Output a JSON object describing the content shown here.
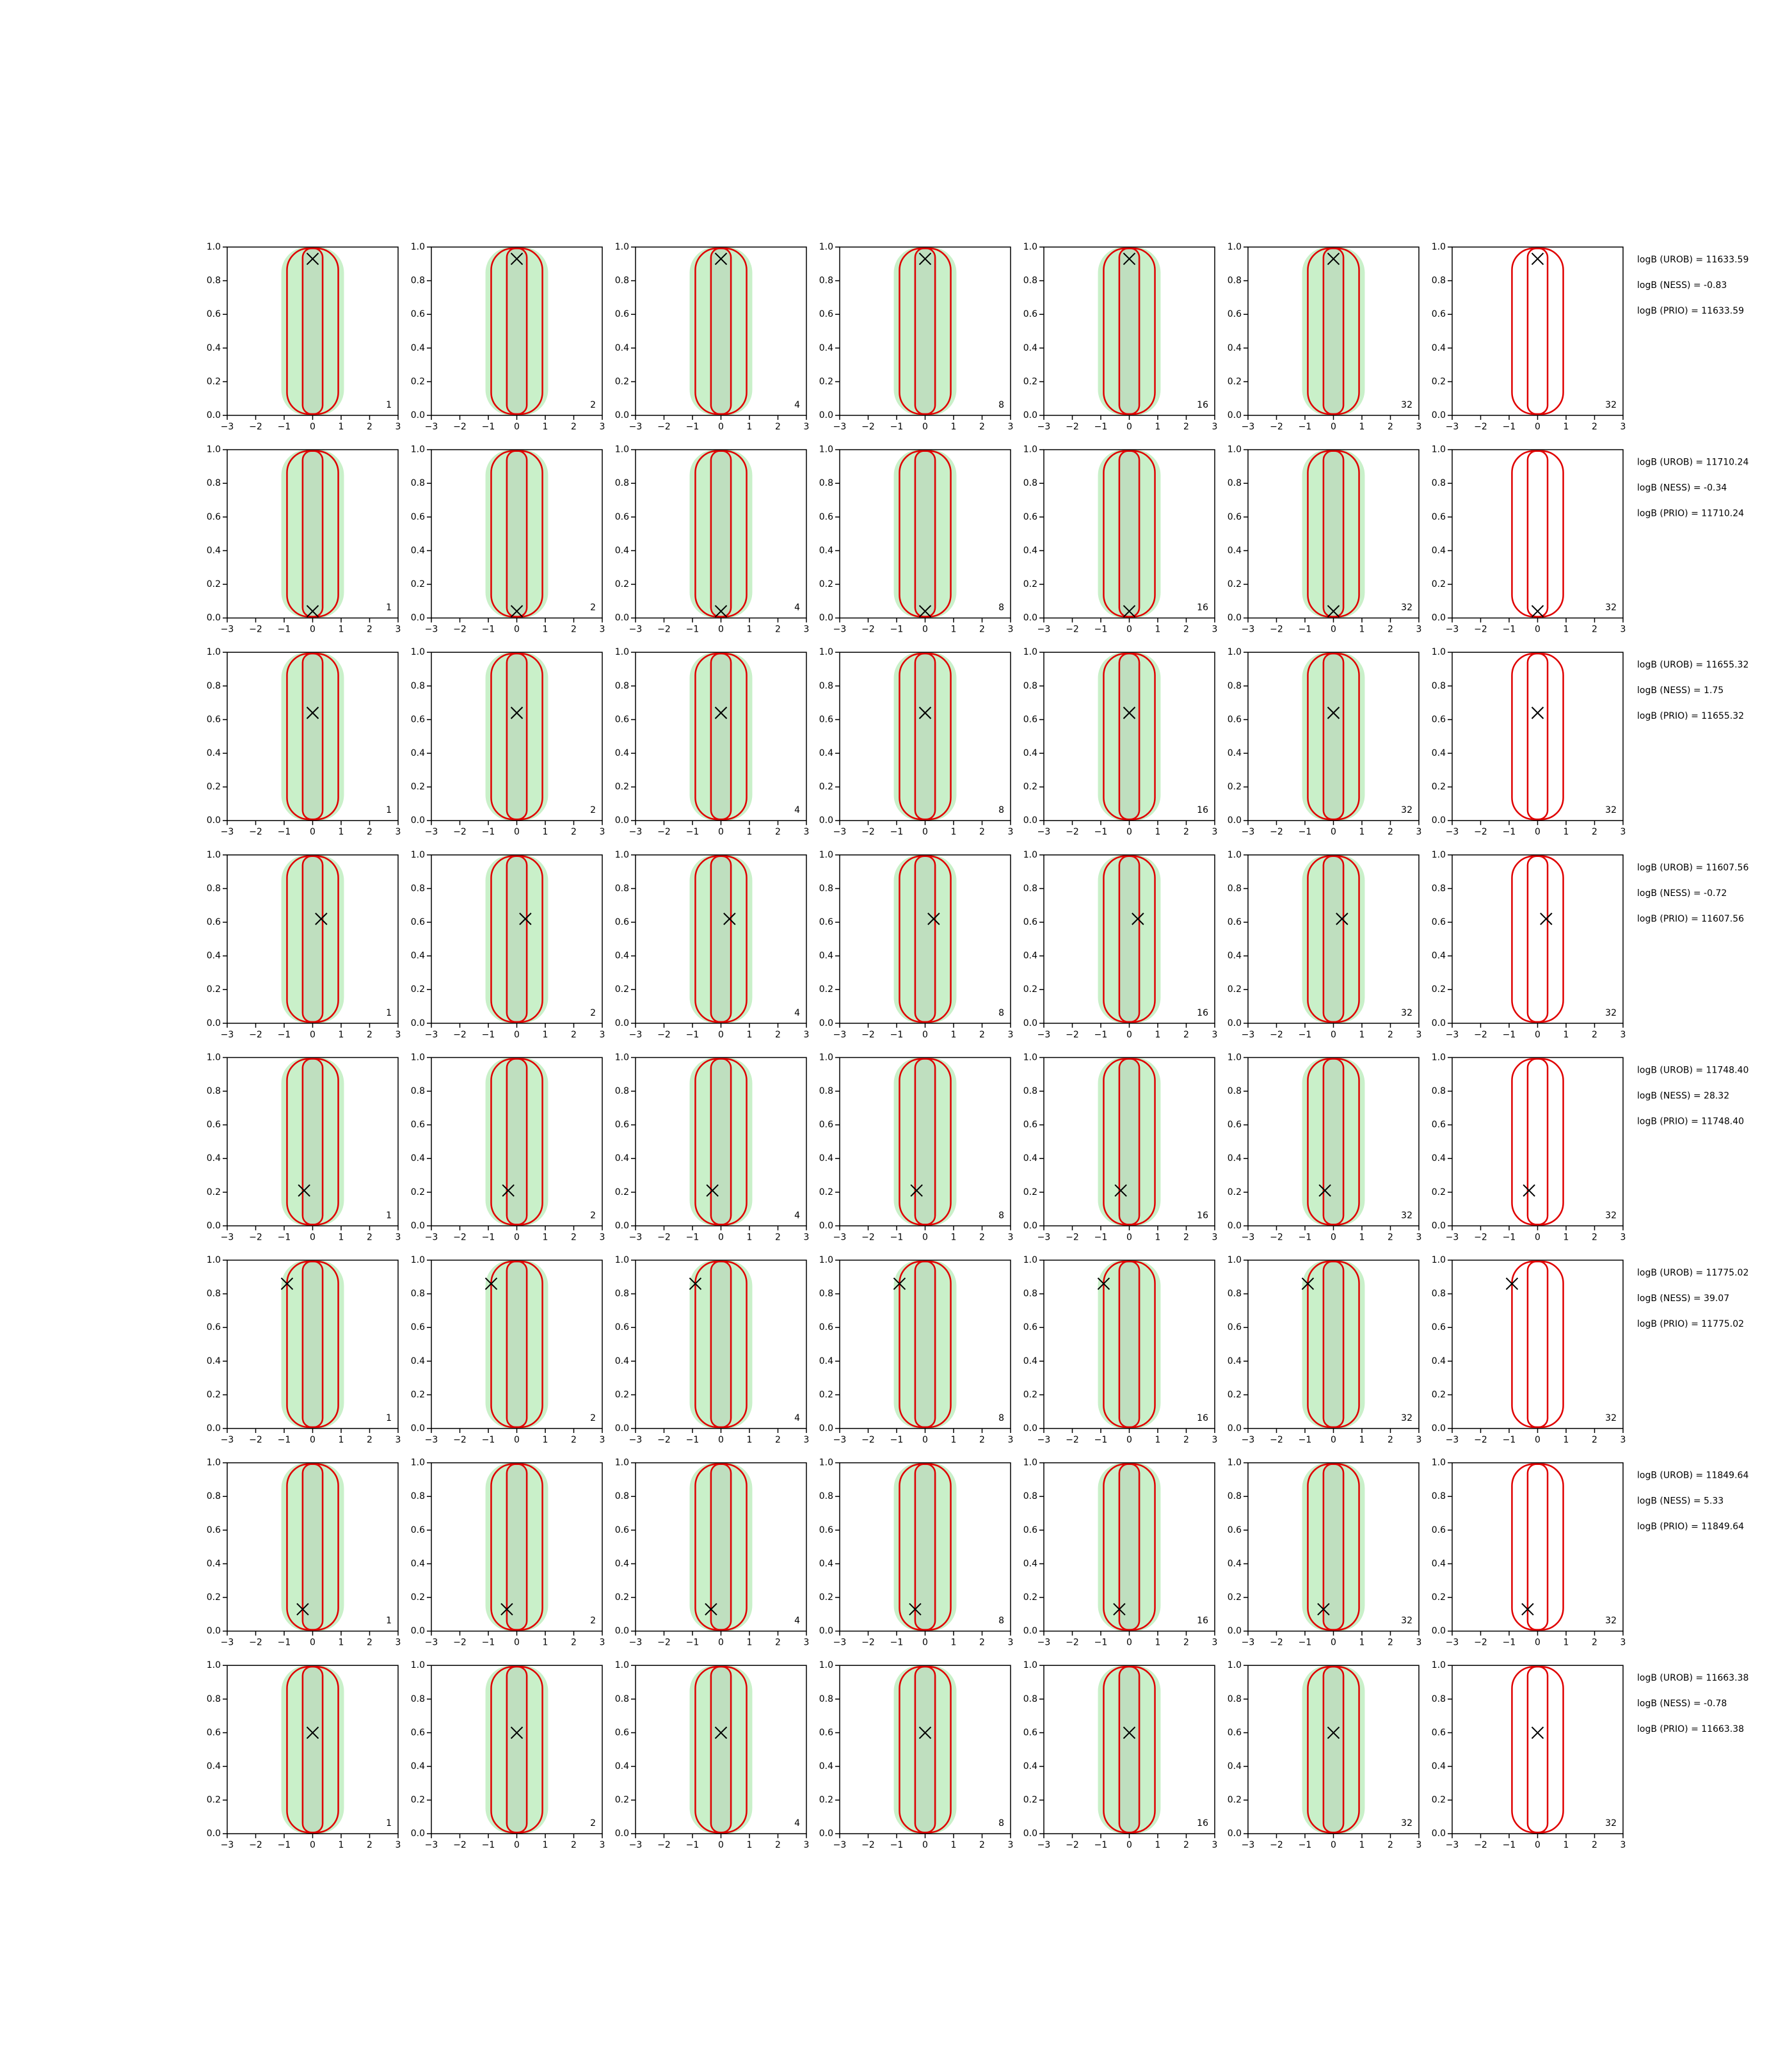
{
  "chart_data": [
    {
      "type": "scatter",
      "x": [
        0
      ],
      "y": [
        0.93
      ],
      "panel_labels": [
        1,
        2,
        4,
        8,
        16,
        32,
        32
      ],
      "xlim": [
        -3,
        3
      ],
      "ylim": [
        0,
        1
      ],
      "xticks": [
        {
          "value": -3,
          "label": "−3"
        },
        {
          "value": -2,
          "label": "−2"
        },
        {
          "value": -1,
          "label": "−1"
        },
        0,
        1,
        2,
        3
      ],
      "yticks": [
        {
          "value": 0,
          "label": "0.0"
        },
        0.2,
        0.4,
        0.6,
        0.8,
        {
          "value": 1,
          "label": "1.0"
        }
      ],
      "annotations": [
        "logB (UROB) = 11633.59",
        "logB (NESS) = -0.83",
        "logB (PRIO) = 11633.59"
      ]
    },
    {
      "type": "scatter",
      "x": [
        0
      ],
      "y": [
        0.04
      ],
      "panel_labels": [
        1,
        2,
        4,
        8,
        16,
        32,
        32
      ],
      "xlim": [
        -3,
        3
      ],
      "ylim": [
        0,
        1
      ],
      "xticks": [
        {
          "value": -3,
          "label": "−3"
        },
        {
          "value": -2,
          "label": "−2"
        },
        {
          "value": -1,
          "label": "−1"
        },
        0,
        1,
        2,
        3
      ],
      "yticks": [
        {
          "value": 0,
          "label": "0.0"
        },
        0.2,
        0.4,
        0.6,
        0.8,
        {
          "value": 1,
          "label": "1.0"
        }
      ],
      "annotations": [
        "logB (UROB) = 11710.24",
        "logB (NESS) = -0.34",
        "logB (PRIO) = 11710.24"
      ]
    },
    {
      "type": "scatter",
      "x": [
        0
      ],
      "y": [
        0.64
      ],
      "panel_labels": [
        1,
        2,
        4,
        8,
        16,
        32,
        32
      ],
      "xlim": [
        -3,
        3
      ],
      "ylim": [
        0,
        1
      ],
      "xticks": [
        {
          "value": -3,
          "label": "−3"
        },
        {
          "value": -2,
          "label": "−2"
        },
        {
          "value": -1,
          "label": "−1"
        },
        0,
        1,
        2,
        3
      ],
      "yticks": [
        {
          "value": 0,
          "label": "0.0"
        },
        0.2,
        0.4,
        0.6,
        0.8,
        {
          "value": 1,
          "label": "1.0"
        }
      ],
      "annotations": [
        "logB (UROB) = 11655.32",
        "logB (NESS) = 1.75",
        "logB (PRIO) = 11655.32"
      ]
    },
    {
      "type": "scatter",
      "x": [
        0.3
      ],
      "y": [
        0.62
      ],
      "panel_labels": [
        1,
        2,
        4,
        8,
        16,
        32,
        32
      ],
      "xlim": [
        -3,
        3
      ],
      "ylim": [
        0,
        1
      ],
      "xticks": [
        {
          "value": -3,
          "label": "−3"
        },
        {
          "value": -2,
          "label": "−2"
        },
        {
          "value": -1,
          "label": "−1"
        },
        0,
        1,
        2,
        3
      ],
      "yticks": [
        {
          "value": 0,
          "label": "0.0"
        },
        0.2,
        0.4,
        0.6,
        0.8,
        {
          "value": 1,
          "label": "1.0"
        }
      ],
      "annotations": [
        "logB (UROB) = 11607.56",
        "logB (NESS) = -0.72",
        "logB (PRIO) = 11607.56"
      ]
    },
    {
      "type": "scatter",
      "x": [
        -0.3
      ],
      "y": [
        0.21
      ],
      "panel_labels": [
        1,
        2,
        4,
        8,
        16,
        32,
        32
      ],
      "xlim": [
        -3,
        3
      ],
      "ylim": [
        0,
        1
      ],
      "xticks": [
        {
          "value": -3,
          "label": "−3"
        },
        {
          "value": -2,
          "label": "−2"
        },
        {
          "value": -1,
          "label": "−1"
        },
        0,
        1,
        2,
        3
      ],
      "yticks": [
        {
          "value": 0,
          "label": "0.0"
        },
        0.2,
        0.4,
        0.6,
        0.8,
        {
          "value": 1,
          "label": "1.0"
        }
      ],
      "annotations": [
        "logB (UROB) = 11748.40",
        "logB (NESS) = 28.32",
        "logB (PRIO) = 11748.40"
      ]
    },
    {
      "type": "scatter",
      "x": [
        -0.9
      ],
      "y": [
        0.86
      ],
      "panel_labels": [
        1,
        2,
        4,
        8,
        16,
        32,
        32
      ],
      "xlim": [
        -3,
        3
      ],
      "ylim": [
        0,
        1
      ],
      "xticks": [
        {
          "value": -3,
          "label": "−3"
        },
        {
          "value": -2,
          "label": "−2"
        },
        {
          "value": -1,
          "label": "−1"
        },
        0,
        1,
        2,
        3
      ],
      "yticks": [
        {
          "value": 0,
          "label": "0.0"
        },
        0.2,
        0.4,
        0.6,
        0.8,
        {
          "value": 1,
          "label": "1.0"
        }
      ],
      "annotations": [
        "logB (UROB) = 11775.02",
        "logB (NESS) = 39.07",
        "logB (PRIO) = 11775.02"
      ]
    },
    {
      "type": "scatter",
      "x": [
        -0.35
      ],
      "y": [
        0.13
      ],
      "panel_labels": [
        1,
        2,
        4,
        8,
        16,
        32,
        32
      ],
      "xlim": [
        -3,
        3
      ],
      "ylim": [
        0,
        1
      ],
      "xticks": [
        {
          "value": -3,
          "label": "−3"
        },
        {
          "value": -2,
          "label": "−2"
        },
        {
          "value": -1,
          "label": "−1"
        },
        0,
        1,
        2,
        3
      ],
      "yticks": [
        {
          "value": 0,
          "label": "0.0"
        },
        0.2,
        0.4,
        0.6,
        0.8,
        {
          "value": 1,
          "label": "1.0"
        }
      ],
      "annotations": [
        "logB (UROB) = 11849.64",
        "logB (NESS) = 5.33",
        "logB (PRIO) = 11849.64"
      ]
    },
    {
      "type": "scatter",
      "x": [
        0
      ],
      "y": [
        0.6
      ],
      "panel_labels": [
        1,
        2,
        4,
        8,
        16,
        32,
        32
      ],
      "xlim": [
        -3,
        3
      ],
      "ylim": [
        0,
        1
      ],
      "xticks": [
        {
          "value": -3,
          "label": "−3"
        },
        {
          "value": -2,
          "label": "−2"
        },
        {
          "value": -1,
          "label": "−1"
        },
        0,
        1,
        2,
        3
      ],
      "yticks": [
        {
          "value": 0,
          "label": "0.0"
        },
        0.2,
        0.4,
        0.6,
        0.8,
        {
          "value": 1,
          "label": "1.0"
        }
      ],
      "annotations": [
        "logB (UROB) = 11663.38",
        "logB (NESS) = -0.78",
        "logB (PRIO) = 11663.38"
      ]
    }
  ]
}
